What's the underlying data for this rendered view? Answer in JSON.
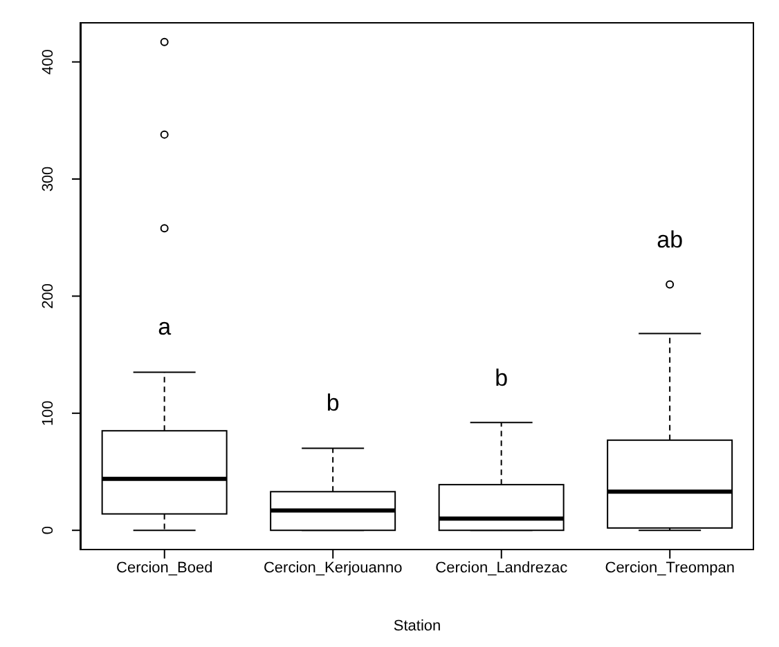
{
  "chart_data": {
    "type": "box",
    "xlabel": "Station",
    "categories": [
      "Cercion_Boed",
      "Cercion_Kerjouanno",
      "Cercion_Landrezac",
      "Cercion_Treompan"
    ],
    "boxes": [
      {
        "low": 0,
        "q1": 14,
        "median": 44,
        "q3": 85,
        "high": 135,
        "outliers": [
          258,
          338,
          417
        ]
      },
      {
        "low": 0,
        "q1": 0,
        "median": 17,
        "q3": 33,
        "high": 70
      },
      {
        "low": 0,
        "q1": 0,
        "median": 10,
        "q3": 39,
        "high": 92
      },
      {
        "low": 0,
        "q1": 2,
        "median": 33,
        "q3": 77,
        "high": 168,
        "outliers": [
          210
        ]
      }
    ],
    "color": "#000000",
    "ylim": [
      -17,
      434
    ],
    "yticks": [
      0,
      100,
      200,
      300,
      400
    ],
    "grid": false,
    "annotations": [
      "a",
      "b",
      "b",
      "ab"
    ]
  }
}
